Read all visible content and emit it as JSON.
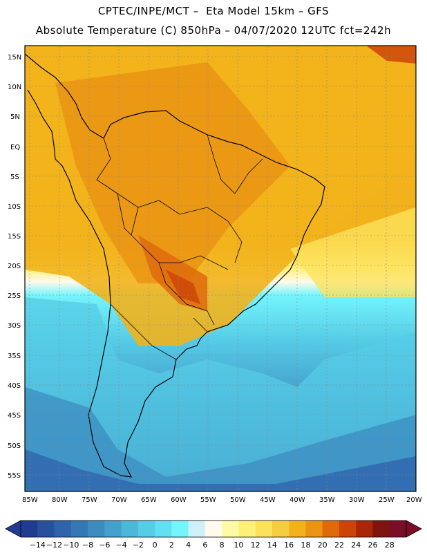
{
  "header": {
    "line1": "CPTEC/INPE/MCT –  Eta Model 15km – GFS",
    "line2": "Absolute Temperature (C) 850hPa – 04/07/2020 12UTC fct=242h"
  },
  "map": {
    "region": "South America",
    "lat_ticks": [
      "15N",
      "10N",
      "5N",
      "EQ",
      "5S",
      "10S",
      "15S",
      "20S",
      "25S",
      "30S",
      "35S",
      "40S",
      "45S",
      "50S",
      "55S"
    ],
    "lon_ticks": [
      "85W",
      "80W",
      "75W",
      "70W",
      "65W",
      "60W",
      "55W",
      "50W",
      "45W",
      "40W",
      "35W",
      "30W",
      "25W",
      "20W"
    ],
    "gridlines": "dotted"
  },
  "colorbar": {
    "labels": [
      "-14",
      "-12",
      "-10",
      "-8",
      "-6",
      "-4",
      "-2",
      "0",
      "2",
      "4",
      "6",
      "8",
      "10",
      "12",
      "14",
      "16",
      "18",
      "20",
      "22",
      "24",
      "26",
      "28"
    ],
    "colors": [
      "#203c90",
      "#28509c",
      "#2f64ac",
      "#3478b6",
      "#3c8cc0",
      "#44a0cc",
      "#4cb8d8",
      "#56cce6",
      "#62e0f2",
      "#74f4fc",
      "#cff0fa",
      "#fffaec",
      "#fffaa4",
      "#fff07a",
      "#fce25c",
      "#f6cc40",
      "#f2b21c",
      "#ea9414",
      "#de6a0c",
      "#cc4408",
      "#aa2608",
      "#7e1410",
      "#7a0e28"
    ]
  }
}
